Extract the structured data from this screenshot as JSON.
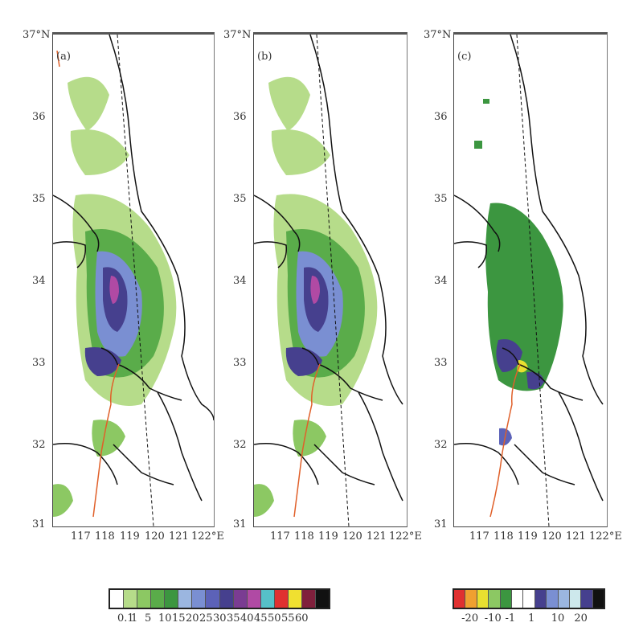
{
  "panels": [
    {
      "id": "a",
      "label": "(a)"
    },
    {
      "id": "b",
      "label": "(b)"
    },
    {
      "id": "c",
      "label": "(c)"
    }
  ],
  "lat_ticks": [
    "37°N",
    "36",
    "35",
    "34",
    "33",
    "32",
    "31"
  ],
  "lon_ticks": [
    "117",
    "118",
    "119",
    "120",
    "121",
    "122°E"
  ],
  "colorbar_precip": {
    "labels": [
      "0.1",
      "1",
      "5",
      "10",
      "15",
      "20",
      "25",
      "30",
      "35",
      "40",
      "45",
      "50",
      "55",
      "60"
    ],
    "colors": [
      "#ffffff",
      "#b6dc8a",
      "#8cc863",
      "#5aac4a",
      "#3c9640",
      "#9bb6e0",
      "#7a8fd2",
      "#5c62b8",
      "#46408e",
      "#7a3c92",
      "#b04aa4",
      "#56c0c8",
      "#e03030",
      "#f0e030",
      "#80203c",
      "#111111"
    ]
  },
  "colorbar_diff": {
    "labels": [
      "-20",
      "-10",
      "-1",
      "1",
      "10",
      "20"
    ],
    "colors": [
      "#e03030",
      "#f0a030",
      "#e8e030",
      "#8cc863",
      "#3c9640",
      "#ffffff",
      "#ffffff",
      "#46408e",
      "#7a8fd2",
      "#9bb6e0",
      "#cde8ec",
      "#46408e",
      "#111111"
    ]
  }
}
